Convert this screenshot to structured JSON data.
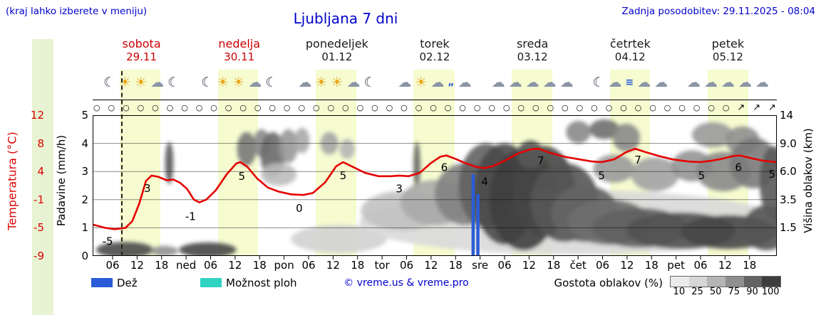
{
  "header": {
    "hint": "(kraj lahko izberete v meniju)",
    "title": "Ljubljana 7 dni",
    "updated": "Zadnja posodobitev: 29.11.2025 - 08:04"
  },
  "days": [
    {
      "name": "sobota",
      "date": "29.11",
      "highlight": true,
      "icons": [
        "☾",
        "☀",
        "☀",
        "☁",
        "☾"
      ]
    },
    {
      "name": "nedelja",
      "date": "30.11",
      "highlight": true,
      "icons": [
        "☾",
        "☀",
        "☀",
        "☁",
        "☾"
      ]
    },
    {
      "name": "ponedeljek",
      "date": "01.12",
      "highlight": false,
      "icons": [
        "☁",
        "☀",
        "☀",
        "☁",
        "☾"
      ]
    },
    {
      "name": "torek",
      "date": "02.12",
      "highlight": false,
      "icons": [
        "☁",
        "☀",
        "☁",
        "„",
        "☁"
      ]
    },
    {
      "name": "sreda",
      "date": "03.12",
      "highlight": false,
      "icons": [
        "☁",
        "☁",
        "☁",
        "☁",
        "☁"
      ]
    },
    {
      "name": "četrtek",
      "date": "04.12",
      "highlight": false,
      "icons": [
        "☾",
        "☁",
        "≡",
        "☁",
        "☁"
      ]
    },
    {
      "name": "petek",
      "date": "05.12",
      "highlight": false,
      "icons": [
        "☁",
        "☁",
        "☁",
        "☁",
        "☁"
      ]
    }
  ],
  "axes": {
    "temp_label": "Temperatura (°C)",
    "temp_ticks": [
      "12",
      "8",
      "4",
      "-1",
      "-5",
      "-9"
    ],
    "precip_label": "Padavine (mm/h)",
    "precip_ticks": [
      "5",
      "4",
      "3",
      "2",
      "1",
      "0"
    ],
    "cloud_label": "Višina oblakov (km)",
    "cloud_ticks": [
      "14",
      "9.0",
      "6.0",
      "3.5",
      "1.5"
    ],
    "x_ticks": [
      "06",
      "12",
      "18",
      "ned",
      "06",
      "12",
      "18",
      "pon",
      "06",
      "12",
      "18",
      "tor",
      "06",
      "12",
      "18",
      "sre",
      "06",
      "12",
      "18",
      "čet",
      "06",
      "12",
      "18",
      "pet",
      "06",
      "12",
      "18"
    ]
  },
  "wind": {
    "calm_symbol": "○",
    "calm_count": 44,
    "arrow_symbols": [
      "↗",
      "↗",
      "↗"
    ]
  },
  "legend": {
    "rain": "Dež",
    "showers": "Možnost ploh",
    "credit": "© vreme.us & vreme.pro",
    "cloud_density": "Gostota oblakov (%)",
    "density_steps": [
      {
        "label": "10",
        "color": "#ebebeb"
      },
      {
        "label": "25",
        "color": "#d6d6d6"
      },
      {
        "label": "50",
        "color": "#b5b5b5"
      },
      {
        "label": "75",
        "color": "#8f8f8f"
      },
      {
        "label": "90",
        "color": "#636363"
      },
      {
        "label": "100",
        "color": "#3d3d3d"
      }
    ]
  },
  "colors": {
    "accent_blue": "#0000cc",
    "highlight_red": "#cc0000",
    "temp_line_red": "#e60000",
    "rain_blue": "#2b5cd8",
    "shower_cyan": "#2ed3c3",
    "day_band": "#f6fbd0",
    "left_strip": "#e7f3d2"
  },
  "chart_data": {
    "type": "line",
    "title": "Ljubljana 7 dni",
    "x_axis_days": [
      "sobota 29.11",
      "nedelja 30.11",
      "ponedeljek 01.12",
      "torek 02.12",
      "sreda 03.12",
      "četrtek 04.12",
      "petek 05.12"
    ],
    "y_precip": {
      "label": "Padavine (mm/h)",
      "range": [
        0,
        5
      ]
    },
    "y_temp": {
      "label": "Temperatura (°C)",
      "range": [
        -9,
        12
      ],
      "ticks": [
        12,
        8,
        4,
        -1,
        -5,
        -9
      ]
    },
    "y_cloud_height": {
      "label": "Višina oblakov (km)",
      "ticks": [
        14,
        9.0,
        6.0,
        3.5,
        1.5
      ]
    },
    "grid": "horizontal",
    "now_line_x": 0.042,
    "day_bands": [
      [
        0.04,
        0.099
      ],
      [
        0.183,
        0.242
      ],
      [
        0.326,
        0.385
      ],
      [
        0.469,
        0.529
      ],
      [
        0.613,
        0.672
      ],
      [
        0.756,
        0.815
      ],
      [
        0.899,
        0.958
      ]
    ],
    "temperature_series": {
      "name": "Temperatura (°C)",
      "color": "#e60000",
      "points": [
        [
          0.0,
          -4.3
        ],
        [
          0.018,
          -4.8
        ],
        [
          0.032,
          -5.0
        ],
        [
          0.048,
          -4.8
        ],
        [
          0.058,
          -3.8
        ],
        [
          0.068,
          -1.2
        ],
        [
          0.078,
          2.2
        ],
        [
          0.086,
          3.0
        ],
        [
          0.096,
          2.8
        ],
        [
          0.108,
          2.3
        ],
        [
          0.118,
          2.4
        ],
        [
          0.128,
          1.9
        ],
        [
          0.138,
          1.0
        ],
        [
          0.148,
          -0.6
        ],
        [
          0.156,
          -1.0
        ],
        [
          0.166,
          -0.6
        ],
        [
          0.18,
          0.8
        ],
        [
          0.196,
          3.2
        ],
        [
          0.21,
          4.8
        ],
        [
          0.216,
          5.0
        ],
        [
          0.226,
          4.3
        ],
        [
          0.24,
          2.6
        ],
        [
          0.256,
          1.2
        ],
        [
          0.272,
          0.6
        ],
        [
          0.29,
          0.2
        ],
        [
          0.308,
          0.1
        ],
        [
          0.322,
          0.4
        ],
        [
          0.34,
          2.0
        ],
        [
          0.356,
          4.4
        ],
        [
          0.366,
          5.0
        ],
        [
          0.38,
          4.3
        ],
        [
          0.398,
          3.4
        ],
        [
          0.418,
          2.9
        ],
        [
          0.436,
          2.9
        ],
        [
          0.448,
          3.0
        ],
        [
          0.462,
          2.9
        ],
        [
          0.478,
          3.4
        ],
        [
          0.495,
          4.9
        ],
        [
          0.508,
          5.8
        ],
        [
          0.517,
          6.0
        ],
        [
          0.53,
          5.5
        ],
        [
          0.546,
          4.8
        ],
        [
          0.56,
          4.3
        ],
        [
          0.572,
          4.1
        ],
        [
          0.585,
          4.4
        ],
        [
          0.602,
          5.2
        ],
        [
          0.622,
          6.3
        ],
        [
          0.64,
          6.9
        ],
        [
          0.652,
          7.0
        ],
        [
          0.668,
          6.4
        ],
        [
          0.69,
          5.8
        ],
        [
          0.712,
          5.4
        ],
        [
          0.73,
          5.1
        ],
        [
          0.744,
          5.0
        ],
        [
          0.762,
          5.4
        ],
        [
          0.78,
          6.5
        ],
        [
          0.793,
          7.0
        ],
        [
          0.808,
          6.5
        ],
        [
          0.828,
          5.9
        ],
        [
          0.848,
          5.4
        ],
        [
          0.87,
          5.1
        ],
        [
          0.888,
          5.0
        ],
        [
          0.904,
          5.2
        ],
        [
          0.92,
          5.5
        ],
        [
          0.936,
          5.9
        ],
        [
          0.946,
          6.0
        ],
        [
          0.962,
          5.6
        ],
        [
          0.98,
          5.2
        ],
        [
          1.0,
          5.0
        ]
      ]
    },
    "temperature_point_labels": [
      {
        "x": 0.022,
        "v": "-5",
        "t": -6.8
      },
      {
        "x": 0.08,
        "v": "3",
        "t": 1.1
      },
      {
        "x": 0.143,
        "v": "-1",
        "t": -3.1
      },
      {
        "x": 0.218,
        "v": "5",
        "t": 2.9
      },
      {
        "x": 0.302,
        "v": "0",
        "t": -1.9
      },
      {
        "x": 0.366,
        "v": "5",
        "t": 3.0
      },
      {
        "x": 0.448,
        "v": "3",
        "t": 1.0
      },
      {
        "x": 0.514,
        "v": "6",
        "t": 4.2
      },
      {
        "x": 0.573,
        "v": "4",
        "t": 2.1
      },
      {
        "x": 0.655,
        "v": "7",
        "t": 5.2
      },
      {
        "x": 0.744,
        "v": "5",
        "t": 3.0
      },
      {
        "x": 0.797,
        "v": "7",
        "t": 5.3
      },
      {
        "x": 0.89,
        "v": "5",
        "t": 3.0
      },
      {
        "x": 0.944,
        "v": "6",
        "t": 4.2
      },
      {
        "x": 0.998,
        "v": "5",
        "t": 3.2
      }
    ],
    "rain_bars": {
      "name": "Dež (mm/h)",
      "color": "#2b5cd8",
      "bars": [
        {
          "x": 0.556,
          "h": 2.9
        },
        {
          "x": 0.563,
          "h": 2.2
        }
      ]
    },
    "clouds": [
      {
        "x": 0.047,
        "p": 0.22,
        "rx": 0.042,
        "ry": 0.28,
        "c": "#4a4a4a"
      },
      {
        "x": 0.105,
        "p": 0.18,
        "rx": 0.02,
        "ry": 0.18,
        "c": "#909090"
      },
      {
        "x": 0.168,
        "p": 0.22,
        "rx": 0.042,
        "ry": 0.26,
        "c": "#474747"
      },
      {
        "x": 0.112,
        "p": 3.3,
        "rx": 0.006,
        "ry": 0.75,
        "c": "#5a5a5a"
      },
      {
        "x": 0.225,
        "p": 3.8,
        "rx": 0.014,
        "ry": 0.6,
        "c": "#787878"
      },
      {
        "x": 0.247,
        "p": 4.0,
        "rx": 0.012,
        "ry": 0.5,
        "c": "#888888"
      },
      {
        "x": 0.263,
        "p": 3.6,
        "rx": 0.018,
        "ry": 0.8,
        "c": "#6a6a6a"
      },
      {
        "x": 0.286,
        "p": 3.9,
        "rx": 0.014,
        "ry": 0.6,
        "c": "#989898"
      },
      {
        "x": 0.306,
        "p": 4.1,
        "rx": 0.011,
        "ry": 0.45,
        "c": "#a8a8a8"
      },
      {
        "x": 0.272,
        "p": 2.9,
        "rx": 0.026,
        "ry": 0.4,
        "c": "#bdbdbd"
      },
      {
        "x": 0.346,
        "p": 4.0,
        "rx": 0.013,
        "ry": 0.4,
        "c": "#a5a5a5"
      },
      {
        "x": 0.372,
        "p": 3.8,
        "rx": 0.011,
        "ry": 0.35,
        "c": "#b5b5b5"
      },
      {
        "x": 0.36,
        "p": 0.6,
        "rx": 0.07,
        "ry": 0.5,
        "c": "#d2d2d2"
      },
      {
        "x": 0.474,
        "p": 3.2,
        "rx": 0.005,
        "ry": 0.85,
        "c": "#666666"
      },
      {
        "x": 0.7,
        "p": 1.2,
        "rx": 0.31,
        "ry": 1.15,
        "c": "#d9d9d9"
      },
      {
        "x": 0.452,
        "p": 1.6,
        "rx": 0.06,
        "ry": 0.7,
        "c": "#c2c2c2"
      },
      {
        "x": 0.5,
        "p": 1.9,
        "rx": 0.05,
        "ry": 0.8,
        "c": "#aaaaaa"
      },
      {
        "x": 0.545,
        "p": 2.2,
        "rx": 0.045,
        "ry": 1.1,
        "c": "#828282"
      },
      {
        "x": 0.575,
        "p": 2.5,
        "rx": 0.04,
        "ry": 1.5,
        "c": "#626262"
      },
      {
        "x": 0.602,
        "p": 2.2,
        "rx": 0.045,
        "ry": 1.8,
        "c": "#4a4a4a"
      },
      {
        "x": 0.63,
        "p": 2.0,
        "rx": 0.05,
        "ry": 1.8,
        "c": "#404040"
      },
      {
        "x": 0.66,
        "p": 2.3,
        "rx": 0.045,
        "ry": 1.6,
        "c": "#464646"
      },
      {
        "x": 0.69,
        "p": 1.9,
        "rx": 0.05,
        "ry": 1.4,
        "c": "#555555"
      },
      {
        "x": 0.72,
        "p": 1.5,
        "rx": 0.05,
        "ry": 1.0,
        "c": "#656565"
      },
      {
        "x": 0.755,
        "p": 1.2,
        "rx": 0.06,
        "ry": 0.8,
        "c": "#6e6e6e"
      },
      {
        "x": 0.8,
        "p": 1.0,
        "rx": 0.07,
        "ry": 0.7,
        "c": "#606060"
      },
      {
        "x": 0.86,
        "p": 0.9,
        "rx": 0.08,
        "ry": 0.65,
        "c": "#525252"
      },
      {
        "x": 0.93,
        "p": 0.85,
        "rx": 0.07,
        "ry": 0.6,
        "c": "#484848"
      },
      {
        "x": 0.985,
        "p": 1.0,
        "rx": 0.035,
        "ry": 0.8,
        "c": "#555555"
      },
      {
        "x": 0.64,
        "p": 3.6,
        "rx": 0.02,
        "ry": 0.5,
        "c": "#575757"
      },
      {
        "x": 0.71,
        "p": 4.4,
        "rx": 0.018,
        "ry": 0.4,
        "c": "#8a8a8a"
      },
      {
        "x": 0.748,
        "p": 4.5,
        "rx": 0.022,
        "ry": 0.35,
        "c": "#6f6f6f"
      },
      {
        "x": 0.78,
        "p": 4.2,
        "rx": 0.02,
        "ry": 0.5,
        "c": "#8a8a8a"
      },
      {
        "x": 0.762,
        "p": 3.1,
        "rx": 0.03,
        "ry": 0.5,
        "c": "#9a9a9a"
      },
      {
        "x": 0.822,
        "p": 2.9,
        "rx": 0.035,
        "ry": 0.6,
        "c": "#a2a2a2"
      },
      {
        "x": 0.876,
        "p": 3.2,
        "rx": 0.03,
        "ry": 0.55,
        "c": "#949494"
      },
      {
        "x": 0.906,
        "p": 4.3,
        "rx": 0.03,
        "ry": 0.45,
        "c": "#9a9a9a"
      },
      {
        "x": 0.95,
        "p": 4.1,
        "rx": 0.025,
        "ry": 0.5,
        "c": "#8f8f8f"
      },
      {
        "x": 0.922,
        "p": 3.0,
        "rx": 0.04,
        "ry": 0.7,
        "c": "#8a8a8a"
      },
      {
        "x": 0.966,
        "p": 3.3,
        "rx": 0.035,
        "ry": 0.9,
        "c": "#7a7a7a"
      },
      {
        "x": 0.995,
        "p": 2.6,
        "rx": 0.02,
        "ry": 1.3,
        "c": "#5a5a5a"
      }
    ]
  }
}
